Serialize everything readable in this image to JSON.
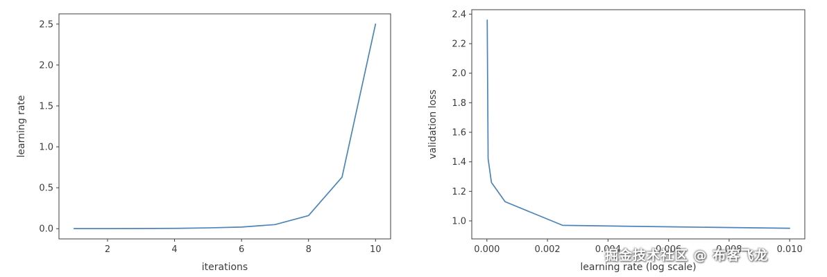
{
  "style": {
    "background_color": "#ffffff",
    "line_color": "#4b84b8",
    "text_color": "#3b3b3b",
    "spine_color": "#3c3c3c"
  },
  "watermark": {
    "text": "掘金技术社区 @ 布客飞龙"
  },
  "chart_data": [
    {
      "type": "line",
      "title": "",
      "xlabel": "iterations",
      "ylabel": "learning rate",
      "x": [
        1,
        2,
        3,
        4,
        5,
        6,
        7,
        8,
        9,
        10
      ],
      "y": [
        0.001,
        0.001,
        0.002,
        0.004,
        0.01,
        0.02,
        0.05,
        0.16,
        0.63,
        2.5
      ],
      "xlim": [
        0.55,
        10.45
      ],
      "ylim": [
        -0.125,
        2.625
      ],
      "xtick_values": [
        2,
        4,
        6,
        8,
        10
      ],
      "xtick_labels": [
        "2",
        "4",
        "6",
        "8",
        "10"
      ],
      "ytick_values": [
        0.0,
        0.5,
        1.0,
        1.5,
        2.0,
        2.5
      ],
      "ytick_labels": [
        "0.0",
        "0.5",
        "1.0",
        "1.5",
        "2.0",
        "2.5"
      ],
      "grid": false,
      "legend": "none",
      "line_color": "#4b84b8"
    },
    {
      "type": "line",
      "title": "",
      "xlabel": "learning rate (log scale)",
      "ylabel": "validation loss",
      "x": [
        1e-05,
        4e-05,
        0.00015,
        0.0006,
        0.0025,
        0.006,
        0.01
      ],
      "y": [
        2.36,
        1.42,
        1.26,
        1.13,
        0.97,
        0.96,
        0.95
      ],
      "xlim": [
        -0.0005,
        0.0105
      ],
      "ylim": [
        0.878,
        2.43
      ],
      "xtick_values": [
        0.0,
        0.002,
        0.004,
        0.006,
        0.008,
        0.01
      ],
      "xtick_labels": [
        "0.000",
        "0.002",
        "0.004",
        "0.006",
        "0.008",
        "0.010"
      ],
      "ytick_values": [
        1.0,
        1.2,
        1.4,
        1.6,
        1.8,
        2.0,
        2.2,
        2.4
      ],
      "ytick_labels": [
        "1.0",
        "1.2",
        "1.4",
        "1.6",
        "1.8",
        "2.0",
        "2.2",
        "2.4"
      ],
      "grid": false,
      "legend": "none",
      "line_color": "#4b84b8"
    }
  ]
}
